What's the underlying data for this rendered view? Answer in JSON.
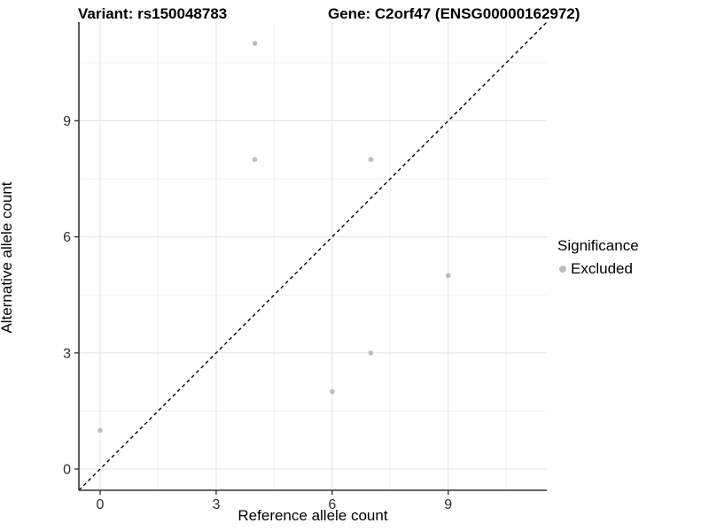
{
  "header": {
    "variant_title": "Variant: rs150048783",
    "gene_title": "Gene: C2orf47 (ENSG00000162972)"
  },
  "legend": {
    "title": "Significance",
    "items": [
      {
        "label": "Excluded",
        "color": "#bdbdbd"
      }
    ]
  },
  "chart_data": {
    "type": "scatter",
    "title": "Variant: rs150048783 — Gene: C2orf47 (ENSG00000162972)",
    "xlabel": "Reference allele count",
    "ylabel": "Alternative allele count",
    "xlim": [
      -0.55,
      11.55
    ],
    "ylim": [
      -0.55,
      11.55
    ],
    "x_breaks": [
      0,
      3,
      6,
      9
    ],
    "y_breaks": [
      0,
      3,
      6,
      9
    ],
    "x_minor_breaks": [
      1.5,
      4.5,
      7.5,
      10.5
    ],
    "y_minor_breaks": [
      1.5,
      4.5,
      7.5,
      10.5
    ],
    "grid": true,
    "legend_position": "right",
    "reference_line": {
      "kind": "identity",
      "slope": 1,
      "intercept": 0,
      "linetype": "dashed",
      "color": "#000000"
    },
    "series": [
      {
        "name": "Excluded",
        "color": "#bdbdbd",
        "points": [
          [
            0,
            1
          ],
          [
            4,
            8
          ],
          [
            4,
            11
          ],
          [
            6,
            2
          ],
          [
            7,
            3
          ],
          [
            7,
            8
          ],
          [
            9,
            5
          ]
        ]
      }
    ]
  }
}
